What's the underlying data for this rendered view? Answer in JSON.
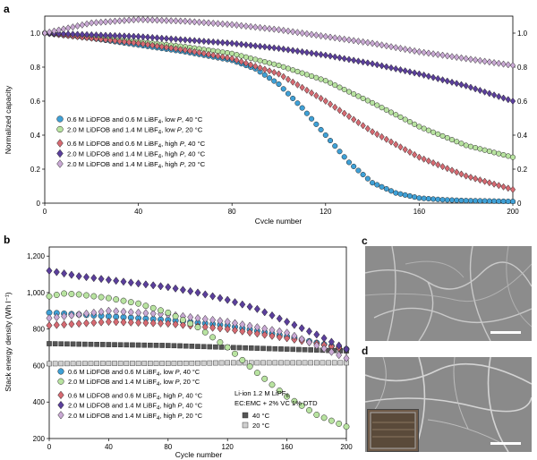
{
  "panel_labels": {
    "a": "a",
    "b": "b",
    "c": "c",
    "d": "d"
  },
  "colors": {
    "blue": "#3fa0d6",
    "green": "#b8e3a0",
    "red": "#d66a72",
    "purple": "#5b3f9c",
    "lilac": "#c9a9d4",
    "gray_dark": "#555555",
    "gray_light": "#cfcfcf"
  },
  "chart_data": [
    {
      "type": "scatter",
      "xlabel": "Cycle number",
      "ylabel": "Normalized capacity",
      "xlim": [
        0,
        200
      ],
      "ylim": [
        0,
        1.1
      ],
      "x_ticks": [
        "0",
        "40",
        "80",
        "120",
        "160",
        "200"
      ],
      "y_ticks": [
        "0",
        "0.2",
        "0.4",
        "0.6",
        "0.8",
        "1.0"
      ],
      "y_ticks_right": [
        "0",
        "0.2",
        "0.4",
        "0.6",
        "0.8",
        "1.0"
      ],
      "legend_placement": "left",
      "series": [
        {
          "name": "0.6 M LiDFOB and 0.6 M LiBF4, low P, 40 °C",
          "legend_main": "0.6 M LiDFOB and 0.6 M LiBF",
          "legend_sub": "4",
          "legend_tail": ", low ",
          "legend_italic": "P",
          "legend_end": ", 40 °C",
          "color_key": "blue",
          "marker": "circle",
          "x": [
            0,
            20,
            40,
            60,
            80,
            90,
            100,
            110,
            120,
            130,
            140,
            150,
            160,
            170,
            180,
            200
          ],
          "y": [
            1.0,
            0.97,
            0.93,
            0.89,
            0.84,
            0.79,
            0.7,
            0.56,
            0.4,
            0.24,
            0.12,
            0.06,
            0.03,
            0.02,
            0.015,
            0.01
          ]
        },
        {
          "name": "2.0 M LiDFOB and 1.4 M LiBF4, low P, 20 °C",
          "legend_main": "2.0 M LiDFOB and 1.4 M LiBF",
          "legend_sub": "4",
          "legend_tail": ", low ",
          "legend_italic": "P",
          "legend_end": ", 20 °C",
          "color_key": "green",
          "marker": "circle",
          "x": [
            0,
            20,
            40,
            60,
            80,
            100,
            120,
            140,
            160,
            180,
            200
          ],
          "y": [
            1.0,
            0.98,
            0.95,
            0.92,
            0.88,
            0.81,
            0.72,
            0.59,
            0.45,
            0.34,
            0.27
          ]
        },
        {
          "name": "0.6 M LiDFOB and 0.6 M LiBF4, high P, 40 °C",
          "legend_main": "0.6 M LiDFOB and 0.6 M LiBF",
          "legend_sub": "4",
          "legend_tail": ", high ",
          "legend_italic": "P",
          "legend_end": ", 40 °C",
          "color_key": "red",
          "marker": "diamond",
          "x": [
            0,
            20,
            40,
            60,
            80,
            100,
            120,
            140,
            160,
            180,
            200
          ],
          "y": [
            1.0,
            0.97,
            0.94,
            0.9,
            0.85,
            0.76,
            0.6,
            0.42,
            0.27,
            0.16,
            0.08
          ]
        },
        {
          "name": "2.0 M LiDFOB and 1.4 M LiBF4, high P, 40 °C",
          "legend_main": "2.0 M LiDFOB and 1.4 M LiBF",
          "legend_sub": "4",
          "legend_tail": ", high ",
          "legend_italic": "P",
          "legend_end": ", 40 °C",
          "color_key": "purple",
          "marker": "diamond",
          "x": [
            0,
            20,
            40,
            60,
            80,
            100,
            120,
            140,
            160,
            180,
            200
          ],
          "y": [
            1.0,
            0.99,
            0.98,
            0.96,
            0.94,
            0.91,
            0.87,
            0.82,
            0.76,
            0.69,
            0.6
          ]
        },
        {
          "name": "2.0 M LiDFOB and 1.4 M LiBF4, high P, 20 °C",
          "legend_main": "2.0 M LiDFOB and 1.4 M LiBF",
          "legend_sub": "4",
          "legend_tail": ", high ",
          "legend_italic": "P",
          "legend_end": ", 20 °C",
          "color_key": "lilac",
          "marker": "diamond",
          "x": [
            0,
            20,
            40,
            60,
            80,
            100,
            120,
            140,
            160,
            180,
            200
          ],
          "y": [
            1.0,
            1.06,
            1.08,
            1.07,
            1.05,
            1.02,
            0.98,
            0.94,
            0.89,
            0.85,
            0.81
          ]
        }
      ]
    },
    {
      "type": "scatter",
      "xlabel": "Cycle number",
      "ylabel": "Stack energy density (Wh l⁻¹)",
      "xlim": [
        0,
        200
      ],
      "ylim": [
        200,
        1250
      ],
      "x_ticks": [
        "0",
        "40",
        "80",
        "120",
        "160",
        "200"
      ],
      "y_ticks": [
        "200",
        "400",
        "600",
        "800",
        "1,000",
        "1,200"
      ],
      "y_tick_values": [
        200,
        400,
        600,
        800,
        1000,
        1200
      ],
      "legend_placement": "bottom-left",
      "annotation": {
        "line1_main": "Li-ion 1.2 M LiPF",
        "line1_sub": "6",
        "line2": "EC:EMC + 2% VC 1% DTD"
      },
      "ref_legend": [
        {
          "label": "40 °C",
          "color_key": "gray_dark"
        },
        {
          "label": "20 °C",
          "color_key": "gray_light"
        }
      ],
      "series": [
        {
          "name": "0.6 M LiDFOB and 0.6 M LiBF4, low P, 40 °C",
          "color_key": "blue",
          "marker": "circle",
          "x": [
            0,
            40,
            80,
            120,
            160,
            200
          ],
          "y": [
            890,
            870,
            850,
            820,
            760,
            690
          ]
        },
        {
          "name": "2.0 M LiDFOB and 1.4 M LiBF4, low P, 20 °C",
          "color_key": "green",
          "marker": "circle",
          "x": [
            0,
            10,
            20,
            40,
            60,
            80,
            100,
            120,
            140,
            160,
            180,
            200
          ],
          "y": [
            980,
            995,
            990,
            970,
            940,
            890,
            810,
            700,
            560,
            430,
            330,
            265
          ]
        },
        {
          "name": "0.6 M LiDFOB and 0.6 M LiBF4, high P, 40 °C",
          "color_key": "red",
          "marker": "diamond",
          "x": [
            0,
            40,
            80,
            120,
            160,
            200
          ],
          "y": [
            820,
            840,
            830,
            800,
            750,
            690
          ]
        },
        {
          "name": "2.0 M LiDFOB and 1.4 M LiBF4, high P, 40 °C",
          "color_key": "purple",
          "marker": "diamond",
          "x": [
            0,
            20,
            40,
            60,
            80,
            100,
            120,
            140,
            160,
            180,
            200
          ],
          "y": [
            1120,
            1090,
            1070,
            1050,
            1030,
            1000,
            960,
            910,
            840,
            770,
            690
          ]
        },
        {
          "name": "2.0 M LiDFOB and 1.4 M LiBF4, high P, 20 °C",
          "color_key": "lilac",
          "marker": "diamond",
          "x": [
            0,
            40,
            80,
            120,
            160,
            200
          ],
          "y": [
            860,
            900,
            880,
            840,
            780,
            640
          ]
        },
        {
          "name": "40 °C",
          "color_key": "gray_dark",
          "marker": "square",
          "x": [
            0,
            40,
            80,
            120,
            160,
            200
          ],
          "y": [
            720,
            715,
            710,
            700,
            690,
            680
          ]
        },
        {
          "name": "20 °C",
          "color_key": "gray_light",
          "marker": "square",
          "x": [
            0,
            40,
            80,
            120,
            160,
            200
          ],
          "y": [
            610,
            612,
            612,
            615,
            615,
            615
          ]
        }
      ]
    }
  ]
}
